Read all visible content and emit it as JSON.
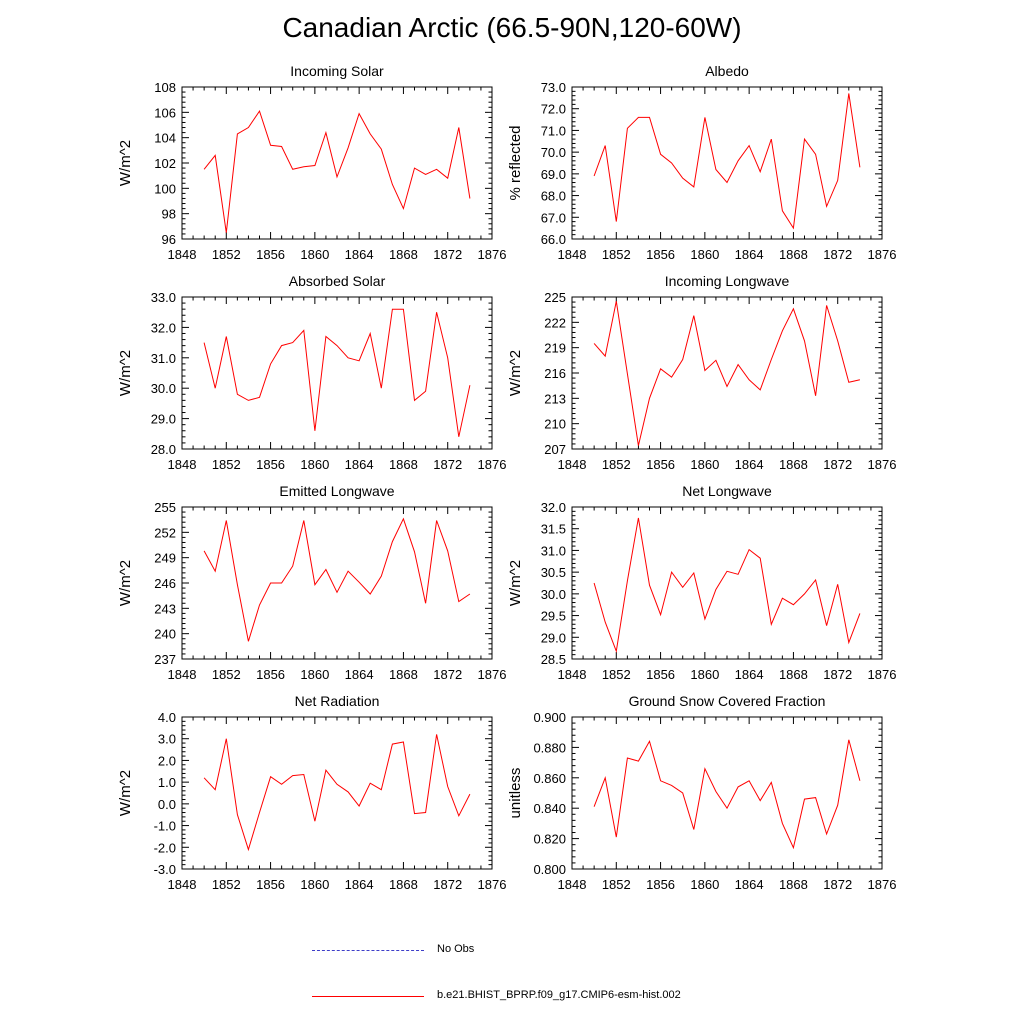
{
  "title": "Canadian Arctic (66.5-90N,120-60W)",
  "legend": {
    "obs_label": "No Obs",
    "obs_color": "#3d3dc8",
    "model_label": "b.e21.BHIST_BPRP.f09_g17.CMIP6-esm-hist.002",
    "model_color": "#ff0000"
  },
  "chart_data": [
    {
      "type": "line",
      "title": "Incoming Solar",
      "xlabel": "",
      "ylabel": "W/m^2",
      "xlim": [
        1848,
        1876
      ],
      "ylim": [
        96,
        108
      ],
      "xticks": [
        "1848",
        "1852",
        "1856",
        "1860",
        "1864",
        "1868",
        "1872",
        "1876"
      ],
      "yticks": [
        "96",
        "98",
        "100",
        "102",
        "104",
        "106",
        "108"
      ],
      "x": [
        1850,
        1851,
        1852,
        1853,
        1854,
        1855,
        1856,
        1857,
        1858,
        1859,
        1860,
        1861,
        1862,
        1863,
        1864,
        1865,
        1866,
        1867,
        1868,
        1869,
        1870,
        1871,
        1872,
        1873,
        1874
      ],
      "series": [
        {
          "name": "b.e21.BHIST_BPRP.f09_g17.CMIP6-esm-hist.002",
          "values": [
            101.5,
            102.6,
            96.5,
            104.3,
            104.8,
            106.1,
            103.4,
            103.3,
            101.5,
            101.7,
            101.8,
            104.4,
            100.9,
            103.2,
            105.9,
            104.3,
            103.1,
            100.3,
            98.4,
            101.6,
            101.1,
            101.5,
            100.8,
            104.8,
            99.2
          ]
        }
      ]
    },
    {
      "type": "line",
      "title": "Albedo",
      "xlabel": "",
      "ylabel": "% reflected",
      "xlim": [
        1848,
        1876
      ],
      "ylim": [
        66,
        73
      ],
      "xticks": [
        "1848",
        "1852",
        "1856",
        "1860",
        "1864",
        "1868",
        "1872",
        "1876"
      ],
      "yticks": [
        "66.0",
        "67.0",
        "68.0",
        "69.0",
        "70.0",
        "71.0",
        "72.0",
        "73.0"
      ],
      "x": [
        1850,
        1851,
        1852,
        1853,
        1854,
        1855,
        1856,
        1857,
        1858,
        1859,
        1860,
        1861,
        1862,
        1863,
        1864,
        1865,
        1866,
        1867,
        1868,
        1869,
        1870,
        1871,
        1872,
        1873,
        1874
      ],
      "series": [
        {
          "name": "b.e21.BHIST_BPRP.f09_g17.CMIP6-esm-hist.002",
          "values": [
            68.9,
            70.3,
            66.8,
            71.1,
            71.6,
            71.6,
            69.9,
            69.5,
            68.8,
            68.4,
            71.6,
            69.2,
            68.6,
            69.6,
            70.3,
            69.1,
            70.6,
            67.3,
            66.5,
            70.6,
            69.9,
            67.5,
            68.7,
            72.7,
            69.3
          ]
        }
      ]
    },
    {
      "type": "line",
      "title": "Absorbed Solar",
      "xlabel": "",
      "ylabel": "W/m^2",
      "xlim": [
        1848,
        1876
      ],
      "ylim": [
        28,
        33
      ],
      "xticks": [
        "1848",
        "1852",
        "1856",
        "1860",
        "1864",
        "1868",
        "1872",
        "1876"
      ],
      "yticks": [
        "28.0",
        "29.0",
        "30.0",
        "31.0",
        "32.0",
        "33.0"
      ],
      "x": [
        1850,
        1851,
        1852,
        1853,
        1854,
        1855,
        1856,
        1857,
        1858,
        1859,
        1860,
        1861,
        1862,
        1863,
        1864,
        1865,
        1866,
        1867,
        1868,
        1869,
        1870,
        1871,
        1872,
        1873,
        1874
      ],
      "series": [
        {
          "name": "b.e21.BHIST_BPRP.f09_g17.CMIP6-esm-hist.002",
          "values": [
            31.5,
            30.0,
            31.7,
            29.8,
            29.6,
            29.7,
            30.8,
            31.4,
            31.5,
            31.9,
            28.6,
            31.7,
            31.4,
            31.0,
            30.9,
            31.8,
            30.0,
            32.6,
            32.6,
            29.6,
            29.9,
            32.5,
            31.0,
            28.4,
            30.1
          ]
        }
      ]
    },
    {
      "type": "line",
      "title": "Incoming Longwave",
      "xlabel": "",
      "ylabel": "W/m^2",
      "xlim": [
        1848,
        1876
      ],
      "ylim": [
        207,
        225
      ],
      "xticks": [
        "1848",
        "1852",
        "1856",
        "1860",
        "1864",
        "1868",
        "1872",
        "1876"
      ],
      "yticks": [
        "207",
        "210",
        "213",
        "216",
        "219",
        "222",
        "225"
      ],
      "x": [
        1850,
        1851,
        1852,
        1853,
        1854,
        1855,
        1856,
        1857,
        1858,
        1859,
        1860,
        1861,
        1862,
        1863,
        1864,
        1865,
        1866,
        1867,
        1868,
        1869,
        1870,
        1871,
        1872,
        1873,
        1874
      ],
      "series": [
        {
          "name": "b.e21.BHIST_BPRP.f09_g17.CMIP6-esm-hist.002",
          "values": [
            219.5,
            218.0,
            224.5,
            215.9,
            207.4,
            213.0,
            216.5,
            215.5,
            217.6,
            222.8,
            216.3,
            217.5,
            214.4,
            217.0,
            215.2,
            214.0,
            217.6,
            221.0,
            223.6,
            219.8,
            213.3,
            224.0,
            219.8,
            214.9,
            215.2
          ]
        }
      ]
    },
    {
      "type": "line",
      "title": "Emitted Longwave",
      "xlabel": "",
      "ylabel": "W/m^2",
      "xlim": [
        1848,
        1876
      ],
      "ylim": [
        237,
        255
      ],
      "xticks": [
        "1848",
        "1852",
        "1856",
        "1860",
        "1864",
        "1868",
        "1872",
        "1876"
      ],
      "yticks": [
        "237",
        "240",
        "243",
        "246",
        "249",
        "252",
        "255"
      ],
      "x": [
        1850,
        1851,
        1852,
        1853,
        1854,
        1855,
        1856,
        1857,
        1858,
        1859,
        1860,
        1861,
        1862,
        1863,
        1864,
        1865,
        1866,
        1867,
        1868,
        1869,
        1870,
        1871,
        1872,
        1873,
        1874
      ],
      "series": [
        {
          "name": "b.e21.BHIST_BPRP.f09_g17.CMIP6-esm-hist.002",
          "values": [
            249.8,
            247.4,
            253.4,
            245.8,
            239.1,
            243.4,
            246.0,
            246.0,
            248.0,
            253.4,
            245.8,
            247.6,
            244.9,
            247.4,
            246.1,
            244.7,
            246.8,
            250.9,
            253.6,
            249.7,
            243.6,
            253.4,
            249.8,
            243.8,
            244.7
          ]
        }
      ]
    },
    {
      "type": "line",
      "title": "Net Longwave",
      "xlabel": "",
      "ylabel": "W/m^2",
      "xlim": [
        1848,
        1876
      ],
      "ylim": [
        28.5,
        32.0
      ],
      "xticks": [
        "1848",
        "1852",
        "1856",
        "1860",
        "1864",
        "1868",
        "1872",
        "1876"
      ],
      "yticks": [
        "28.5",
        "29.0",
        "29.5",
        "30.0",
        "30.5",
        "31.0",
        "31.5",
        "32.0"
      ],
      "x": [
        1850,
        1851,
        1852,
        1853,
        1854,
        1855,
        1856,
        1857,
        1858,
        1859,
        1860,
        1861,
        1862,
        1863,
        1864,
        1865,
        1866,
        1867,
        1868,
        1869,
        1870,
        1871,
        1872,
        1873,
        1874
      ],
      "series": [
        {
          "name": "b.e21.BHIST_BPRP.f09_g17.CMIP6-esm-hist.002",
          "values": [
            30.25,
            29.35,
            28.68,
            30.3,
            31.75,
            30.2,
            29.52,
            30.5,
            30.15,
            30.48,
            29.42,
            30.1,
            30.52,
            30.45,
            31.02,
            30.82,
            29.3,
            29.9,
            29.75,
            30.0,
            30.32,
            29.27,
            30.22,
            28.88,
            29.55
          ]
        }
      ]
    },
    {
      "type": "line",
      "title": "Net Radiation",
      "xlabel": "",
      "ylabel": "W/m^2",
      "xlim": [
        1848,
        1876
      ],
      "ylim": [
        -3.0,
        4.0
      ],
      "xticks": [
        "1848",
        "1852",
        "1856",
        "1860",
        "1864",
        "1868",
        "1872",
        "1876"
      ],
      "yticks": [
        "-3.0",
        "-2.0",
        "-1.0",
        "0.0",
        "1.0",
        "2.0",
        "3.0",
        "4.0"
      ],
      "x": [
        1850,
        1851,
        1852,
        1853,
        1854,
        1855,
        1856,
        1857,
        1858,
        1859,
        1860,
        1861,
        1862,
        1863,
        1864,
        1865,
        1866,
        1867,
        1868,
        1869,
        1870,
        1871,
        1872,
        1873,
        1874
      ],
      "series": [
        {
          "name": "b.e21.BHIST_BPRP.f09_g17.CMIP6-esm-hist.002",
          "values": [
            1.2,
            0.65,
            3.0,
            -0.5,
            -2.1,
            -0.4,
            1.25,
            0.9,
            1.3,
            1.35,
            -0.8,
            1.55,
            0.9,
            0.55,
            -0.1,
            0.95,
            0.65,
            2.75,
            2.85,
            -0.45,
            -0.4,
            3.2,
            0.8,
            -0.55,
            0.45
          ]
        }
      ]
    },
    {
      "type": "line",
      "title": "Ground Snow Covered Fraction",
      "xlabel": "",
      "ylabel": "unitless",
      "xlim": [
        1848,
        1876
      ],
      "ylim": [
        0.8,
        0.9
      ],
      "xticks": [
        "1848",
        "1852",
        "1856",
        "1860",
        "1864",
        "1868",
        "1872",
        "1876"
      ],
      "yticks": [
        "0.800",
        "0.820",
        "0.840",
        "0.860",
        "0.880",
        "0.900"
      ],
      "x": [
        1850,
        1851,
        1852,
        1853,
        1854,
        1855,
        1856,
        1857,
        1858,
        1859,
        1860,
        1861,
        1862,
        1863,
        1864,
        1865,
        1866,
        1867,
        1868,
        1869,
        1870,
        1871,
        1872,
        1873,
        1874
      ],
      "series": [
        {
          "name": "b.e21.BHIST_BPRP.f09_g17.CMIP6-esm-hist.002",
          "values": [
            0.841,
            0.86,
            0.821,
            0.873,
            0.871,
            0.884,
            0.858,
            0.855,
            0.85,
            0.826,
            0.866,
            0.851,
            0.84,
            0.854,
            0.858,
            0.845,
            0.857,
            0.83,
            0.814,
            0.846,
            0.847,
            0.823,
            0.842,
            0.885,
            0.858
          ]
        }
      ]
    }
  ]
}
